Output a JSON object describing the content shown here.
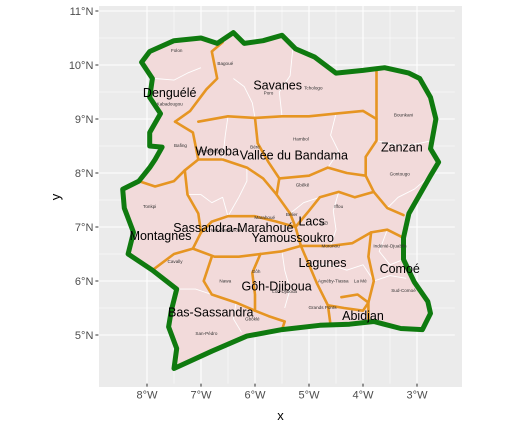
{
  "colors": {
    "panel": "#ebebeb",
    "grid": "#ffffff",
    "land": "#f2dada",
    "department_border": "#ffffff",
    "region_border": "#e69522",
    "country_border": "#0f7a0f"
  },
  "chart_data": {
    "type": "map",
    "title": "",
    "xlabel": "x",
    "ylabel": "y",
    "xlim": [
      -8.9,
      -2.3
    ],
    "ylim": [
      4.1,
      11.1
    ],
    "grid": true,
    "legend": "none",
    "x_ticks": [
      {
        "value": -8,
        "label": "8°W"
      },
      {
        "value": -7,
        "label": "7°W"
      },
      {
        "value": -6,
        "label": "6°W"
      },
      {
        "value": -5,
        "label": "5°W"
      },
      {
        "value": -4,
        "label": "4°W"
      },
      {
        "value": -3,
        "label": "3°W"
      }
    ],
    "y_ticks": [
      {
        "value": 5,
        "label": "5°N"
      },
      {
        "value": 6,
        "label": "6°N"
      },
      {
        "value": 7,
        "label": "7°N"
      },
      {
        "value": 8,
        "label": "8°N"
      },
      {
        "value": 9,
        "label": "9°N"
      },
      {
        "value": 10,
        "label": "10°N"
      },
      {
        "value": 11,
        "label": "11°N"
      }
    ],
    "region_labels": [
      {
        "name": "Denguélé",
        "lon": -7.58,
        "lat": 9.48
      },
      {
        "name": "Savanes",
        "lon": -5.58,
        "lat": 9.62
      },
      {
        "name": "Woroba",
        "lon": -6.7,
        "lat": 8.4
      },
      {
        "name": "Vallée du Bandama",
        "lon": -5.28,
        "lat": 8.32
      },
      {
        "name": "Zanzan",
        "lon": -3.28,
        "lat": 8.47
      },
      {
        "name": "Lacs",
        "lon": -4.95,
        "lat": 7.1
      },
      {
        "name": "Sassandra-Marahoué",
        "lon": -6.4,
        "lat": 6.98
      },
      {
        "name": "Yamoussoukro",
        "lon": -5.3,
        "lat": 6.8
      },
      {
        "name": "Montagnes",
        "lon": -7.75,
        "lat": 6.83
      },
      {
        "name": "Lagunes",
        "lon": -4.75,
        "lat": 6.33
      },
      {
        "name": "Comoé",
        "lon": -3.32,
        "lat": 6.22
      },
      {
        "name": "Gôh-Djiboua",
        "lon": -5.6,
        "lat": 5.9
      },
      {
        "name": "Bas-Sassandra",
        "lon": -6.82,
        "lat": 5.42
      },
      {
        "name": "Abidjan",
        "lon": -4.0,
        "lat": 5.35
      }
    ],
    "department_labels": [
      {
        "name": "Folon",
        "lon": -7.45,
        "lat": 10.24
      },
      {
        "name": "Bagoué",
        "lon": -6.55,
        "lat": 10.0
      },
      {
        "name": "Poro",
        "lon": -5.75,
        "lat": 9.45
      },
      {
        "name": "Tchologo",
        "lon": -4.92,
        "lat": 9.55
      },
      {
        "name": "Kabadougou",
        "lon": -7.58,
        "lat": 9.25
      },
      {
        "name": "Bounkani",
        "lon": -3.25,
        "lat": 9.05
      },
      {
        "name": "Bafing",
        "lon": -7.38,
        "lat": 8.48
      },
      {
        "name": "Worodougou",
        "lon": -6.82,
        "lat": 8.38
      },
      {
        "name": "Béré",
        "lon": -6.0,
        "lat": 8.45
      },
      {
        "name": "Hambol",
        "lon": -5.15,
        "lat": 8.6
      },
      {
        "name": "Gontougo",
        "lon": -3.32,
        "lat": 7.95
      },
      {
        "name": "Gbêkê",
        "lon": -5.12,
        "lat": 7.75
      },
      {
        "name": "Iffou",
        "lon": -4.45,
        "lat": 7.35
      },
      {
        "name": "Tonkpi",
        "lon": -7.95,
        "lat": 7.35
      },
      {
        "name": "Marahoué",
        "lon": -5.82,
        "lat": 7.15
      },
      {
        "name": "Bélier",
        "lon": -5.32,
        "lat": 7.2
      },
      {
        "name": "N'Zi",
        "lon": -4.72,
        "lat": 7.05
      },
      {
        "name": "Haut-Sassandra",
        "lon": -6.55,
        "lat": 6.92
      },
      {
        "name": "Moronou",
        "lon": -4.6,
        "lat": 6.62
      },
      {
        "name": "Indénié-Djuablin",
        "lon": -3.5,
        "lat": 6.62
      },
      {
        "name": "Cavally",
        "lon": -7.48,
        "lat": 6.33
      },
      {
        "name": "Gôh",
        "lon": -5.98,
        "lat": 6.15
      },
      {
        "name": "Nawa",
        "lon": -6.55,
        "lat": 5.97
      },
      {
        "name": "Agnéby-Tiassa",
        "lon": -4.55,
        "lat": 5.97
      },
      {
        "name": "La Mé",
        "lon": -4.05,
        "lat": 5.97
      },
      {
        "name": "Lôh-Djiboua",
        "lon": -5.45,
        "lat": 5.78
      },
      {
        "name": "Sud-Comoé",
        "lon": -3.25,
        "lat": 5.8
      },
      {
        "name": "Grands Ponts",
        "lon": -4.75,
        "lat": 5.48
      },
      {
        "name": "Gbôklé",
        "lon": -6.05,
        "lat": 5.27
      },
      {
        "name": "San-Pédro",
        "lon": -6.9,
        "lat": 5.0
      }
    ],
    "country_outline": [
      [
        -7.5,
        4.38
      ],
      [
        -7.45,
        4.75
      ],
      [
        -7.6,
        5.15
      ],
      [
        -7.55,
        5.45
      ],
      [
        -7.45,
        5.85
      ],
      [
        -7.9,
        6.2
      ],
      [
        -8.35,
        6.5
      ],
      [
        -8.25,
        6.9
      ],
      [
        -8.42,
        7.35
      ],
      [
        -8.45,
        7.7
      ],
      [
        -8.15,
        7.85
      ],
      [
        -7.95,
        8.1
      ],
      [
        -7.85,
        8.25
      ],
      [
        -7.72,
        8.48
      ],
      [
        -7.95,
        8.5
      ],
      [
        -7.95,
        8.75
      ],
      [
        -7.75,
        9.1
      ],
      [
        -7.95,
        9.4
      ],
      [
        -7.9,
        9.75
      ],
      [
        -8.1,
        10.05
      ],
      [
        -7.95,
        10.25
      ],
      [
        -7.5,
        10.45
      ],
      [
        -7.0,
        10.5
      ],
      [
        -6.7,
        10.4
      ],
      [
        -6.4,
        10.6
      ],
      [
        -6.2,
        10.4
      ],
      [
        -5.85,
        10.45
      ],
      [
        -5.5,
        10.55
      ],
      [
        -5.25,
        10.3
      ],
      [
        -4.9,
        10.15
      ],
      [
        -4.5,
        9.85
      ],
      [
        -4.0,
        9.9
      ],
      [
        -3.6,
        9.95
      ],
      [
        -3.15,
        9.85
      ],
      [
        -2.95,
        9.75
      ],
      [
        -2.75,
        9.4
      ],
      [
        -2.65,
        9.0
      ],
      [
        -2.75,
        8.45
      ],
      [
        -2.6,
        8.2
      ],
      [
        -2.75,
        7.95
      ],
      [
        -2.95,
        7.6
      ],
      [
        -3.15,
        7.25
      ],
      [
        -3.25,
        6.8
      ],
      [
        -3.25,
        6.4
      ],
      [
        -3.05,
        5.98
      ],
      [
        -2.8,
        5.62
      ],
      [
        -2.75,
        5.4
      ],
      [
        -2.9,
        5.1
      ],
      [
        -3.3,
        5.12
      ],
      [
        -3.8,
        5.25
      ],
      [
        -4.25,
        5.2
      ],
      [
        -4.8,
        5.18
      ],
      [
        -5.5,
        5.1
      ],
      [
        -6.15,
        4.98
      ],
      [
        -6.8,
        4.7
      ],
      [
        -7.5,
        4.38
      ]
    ],
    "region_boundaries": [
      [
        [
          -7.48,
          8.95
        ],
        [
          -7.2,
          9.15
        ],
        [
          -6.9,
          9.55
        ],
        [
          -6.7,
          9.75
        ],
        [
          -6.8,
          10.25
        ],
        [
          -6.6,
          10.42
        ]
      ],
      [
        [
          -7.48,
          8.95
        ],
        [
          -7.15,
          8.75
        ],
        [
          -7.05,
          8.25
        ],
        [
          -7.3,
          8.05
        ],
        [
          -7.5,
          7.85
        ],
        [
          -7.85,
          7.75
        ],
        [
          -8.15,
          7.85
        ]
      ],
      [
        [
          -7.05,
          8.95
        ],
        [
          -6.5,
          9.05
        ],
        [
          -6.0,
          9.02
        ],
        [
          -5.5,
          9.05
        ],
        [
          -5.0,
          9.05
        ],
        [
          -4.5,
          9.1
        ],
        [
          -4.0,
          9.15
        ],
        [
          -3.75,
          9.0
        ]
      ],
      [
        [
          -3.75,
          9.95
        ],
        [
          -3.75,
          9.0
        ],
        [
          -3.75,
          8.6
        ],
        [
          -3.95,
          8.3
        ],
        [
          -3.95,
          7.95
        ],
        [
          -3.8,
          7.65
        ],
        [
          -3.55,
          7.35
        ],
        [
          -3.25,
          7.22
        ]
      ],
      [
        [
          -7.05,
          8.25
        ],
        [
          -6.6,
          8.25
        ],
        [
          -6.15,
          8.1
        ],
        [
          -5.85,
          7.9
        ],
        [
          -5.6,
          7.6
        ]
      ],
      [
        [
          -6.0,
          9.02
        ],
        [
          -5.95,
          8.55
        ],
        [
          -5.75,
          8.2
        ],
        [
          -5.55,
          7.9
        ],
        [
          -5.6,
          7.6
        ],
        [
          -5.35,
          7.25
        ],
        [
          -5.25,
          7.0
        ]
      ],
      [
        [
          -5.55,
          7.9
        ],
        [
          -5.0,
          7.95
        ],
        [
          -4.65,
          8.1
        ],
        [
          -4.3,
          8.0
        ],
        [
          -3.95,
          7.95
        ]
      ],
      [
        [
          -7.3,
          8.05
        ],
        [
          -7.25,
          7.6
        ],
        [
          -7.05,
          7.25
        ],
        [
          -7.0,
          6.9
        ],
        [
          -7.15,
          6.6
        ],
        [
          -7.5,
          6.5
        ],
        [
          -7.9,
          6.2
        ]
      ],
      [
        [
          -7.0,
          6.9
        ],
        [
          -6.8,
          7.1
        ],
        [
          -6.5,
          7.2
        ],
        [
          -6.0,
          7.2
        ],
        [
          -5.6,
          7.1
        ],
        [
          -5.25,
          7.0
        ]
      ],
      [
        [
          -7.15,
          6.6
        ],
        [
          -6.75,
          6.45
        ],
        [
          -6.3,
          6.45
        ],
        [
          -5.9,
          6.5
        ],
        [
          -5.5,
          6.55
        ],
        [
          -5.15,
          6.65
        ]
      ],
      [
        [
          -5.25,
          7.0
        ],
        [
          -5.15,
          6.65
        ],
        [
          -5.0,
          6.3
        ],
        [
          -4.85,
          5.95
        ],
        [
          -4.65,
          5.55
        ],
        [
          -4.6,
          5.18
        ]
      ],
      [
        [
          -5.25,
          7.0
        ],
        [
          -5.0,
          7.3
        ],
        [
          -4.8,
          7.55
        ],
        [
          -4.45,
          7.65
        ],
        [
          -4.15,
          7.55
        ],
        [
          -3.8,
          7.65
        ]
      ],
      [
        [
          -5.15,
          6.65
        ],
        [
          -4.6,
          6.65
        ],
        [
          -4.2,
          6.7
        ],
        [
          -3.85,
          6.9
        ],
        [
          -3.55,
          6.95
        ],
        [
          -3.25,
          6.8
        ]
      ],
      [
        [
          -3.85,
          6.9
        ],
        [
          -3.9,
          6.45
        ],
        [
          -3.8,
          6.0
        ],
        [
          -3.9,
          5.6
        ],
        [
          -3.9,
          5.22
        ]
      ],
      [
        [
          -6.8,
          6.45
        ],
        [
          -6.95,
          6.0
        ],
        [
          -6.8,
          5.75
        ],
        [
          -6.35,
          5.6
        ],
        [
          -6.0,
          5.45
        ],
        [
          -5.75,
          5.35
        ],
        [
          -5.45,
          5.25
        ],
        [
          -5.5,
          5.1
        ]
      ],
      [
        [
          -5.9,
          6.5
        ],
        [
          -6.05,
          6.15
        ],
        [
          -6.0,
          5.75
        ],
        [
          -6.0,
          5.45
        ]
      ],
      [
        [
          -4.65,
          5.55
        ],
        [
          -4.35,
          5.5
        ],
        [
          -4.0,
          5.45
        ],
        [
          -3.9,
          5.6
        ],
        [
          -4.1,
          5.75
        ],
        [
          -4.4,
          5.7
        ]
      ]
    ],
    "department_boundaries": [
      [
        [
          -7.85,
          9.75
        ],
        [
          -7.5,
          9.72
        ],
        [
          -7.25,
          9.85
        ],
        [
          -7.0,
          9.95
        ]
      ],
      [
        [
          -6.4,
          9.75
        ],
        [
          -6.2,
          9.6
        ],
        [
          -6.05,
          9.3
        ],
        [
          -6.0,
          9.02
        ]
      ],
      [
        [
          -5.3,
          10.3
        ],
        [
          -5.35,
          9.8
        ],
        [
          -5.55,
          9.5
        ],
        [
          -5.5,
          9.05
        ]
      ],
      [
        [
          -4.5,
          9.1
        ],
        [
          -4.6,
          8.7
        ],
        [
          -4.45,
          8.4
        ],
        [
          -4.65,
          8.1
        ]
      ],
      [
        [
          -3.75,
          8.6
        ],
        [
          -3.3,
          8.5
        ],
        [
          -2.95,
          8.55
        ],
        [
          -2.72,
          8.6
        ]
      ],
      [
        [
          -6.6,
          8.25
        ],
        [
          -6.55,
          8.7
        ],
        [
          -6.5,
          9.05
        ]
      ],
      [
        [
          -7.25,
          7.6
        ],
        [
          -7.0,
          7.6
        ],
        [
          -6.8,
          7.45
        ],
        [
          -6.6,
          7.55
        ],
        [
          -6.5,
          7.2
        ]
      ],
      [
        [
          -6.5,
          7.2
        ],
        [
          -6.3,
          7.55
        ],
        [
          -6.15,
          7.85
        ],
        [
          -6.15,
          8.1
        ]
      ],
      [
        [
          -5.35,
          7.25
        ],
        [
          -5.1,
          7.45
        ],
        [
          -4.8,
          7.55
        ]
      ],
      [
        [
          -4.6,
          6.65
        ],
        [
          -4.5,
          6.95
        ],
        [
          -4.55,
          7.3
        ],
        [
          -4.45,
          7.65
        ]
      ],
      [
        [
          -3.55,
          6.95
        ],
        [
          -3.7,
          6.55
        ],
        [
          -3.5,
          6.3
        ],
        [
          -3.25,
          6.4
        ]
      ],
      [
        [
          -3.8,
          6.0
        ],
        [
          -3.5,
          6.1
        ],
        [
          -3.2,
          6.05
        ]
      ],
      [
        [
          -5.5,
          6.55
        ],
        [
          -5.45,
          6.2
        ],
        [
          -5.35,
          5.85
        ],
        [
          -5.45,
          5.5
        ]
      ],
      [
        [
          -6.35,
          5.6
        ],
        [
          -6.4,
          5.3
        ],
        [
          -6.25,
          5.05
        ]
      ],
      [
        [
          -7.45,
          5.85
        ],
        [
          -7.1,
          5.85
        ],
        [
          -6.8,
          5.75
        ]
      ],
      [
        [
          -5.0,
          6.3
        ],
        [
          -4.6,
          6.3
        ],
        [
          -4.3,
          6.2
        ],
        [
          -4.0,
          6.3
        ],
        [
          -3.8,
          6.0
        ]
      ],
      [
        [
          -2.75,
          7.95
        ],
        [
          -3.05,
          7.7
        ],
        [
          -3.35,
          7.55
        ],
        [
          -3.55,
          7.35
        ]
      ]
    ]
  }
}
